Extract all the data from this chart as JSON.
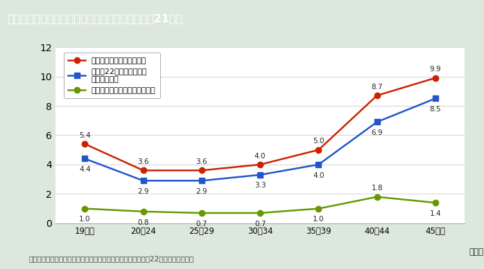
{
  "title": "第１－７－２図　母の年齢別周産期死亡率（平成21年）",
  "subtitle_note": "（備考）（財）母子衛生研究会「母子保健の主な統計」（平成22年度）より作成。",
  "x_labels": [
    "19以下",
    "20～24",
    "25～29",
    "30～34",
    "35～39",
    "40～44",
    "45以上"
  ],
  "x_unit": "（歳）",
  "series": [
    {
      "name": "周産期死亡率（出産千対）",
      "values": [
        5.4,
        3.6,
        3.6,
        4.0,
        5.0,
        8.7,
        9.9
      ],
      "color": "#cc2200",
      "marker": "o"
    },
    {
      "name": "妊娠満22週以後の死産率\n（出産千対）",
      "values": [
        4.4,
        2.9,
        2.9,
        3.3,
        4.0,
        6.9,
        8.5
      ],
      "color": "#2255cc",
      "marker": "s"
    },
    {
      "name": "早期新生児死亡率（出生千対）",
      "values": [
        1.0,
        0.8,
        0.7,
        0.7,
        1.0,
        1.8,
        1.4
      ],
      "color": "#669900",
      "marker": "o"
    }
  ],
  "label_offsets_red": [
    0.35,
    0.35,
    0.35,
    0.35,
    0.35,
    0.35,
    0.35
  ],
  "label_offsets_blue": [
    -0.5,
    -0.5,
    -0.5,
    -0.5,
    -0.5,
    -0.5,
    -0.5
  ],
  "label_offsets_green": [
    -0.5,
    -0.5,
    -0.5,
    -0.5,
    -0.5,
    0.35,
    -0.5
  ],
  "ylim": [
    0,
    12
  ],
  "yticks": [
    0,
    2,
    4,
    6,
    8,
    10,
    12
  ],
  "bg_color": "#dce8dc",
  "plot_bg_color": "#ffffff",
  "title_bg_color": "#9b8560",
  "title_text_color": "#ffffff"
}
